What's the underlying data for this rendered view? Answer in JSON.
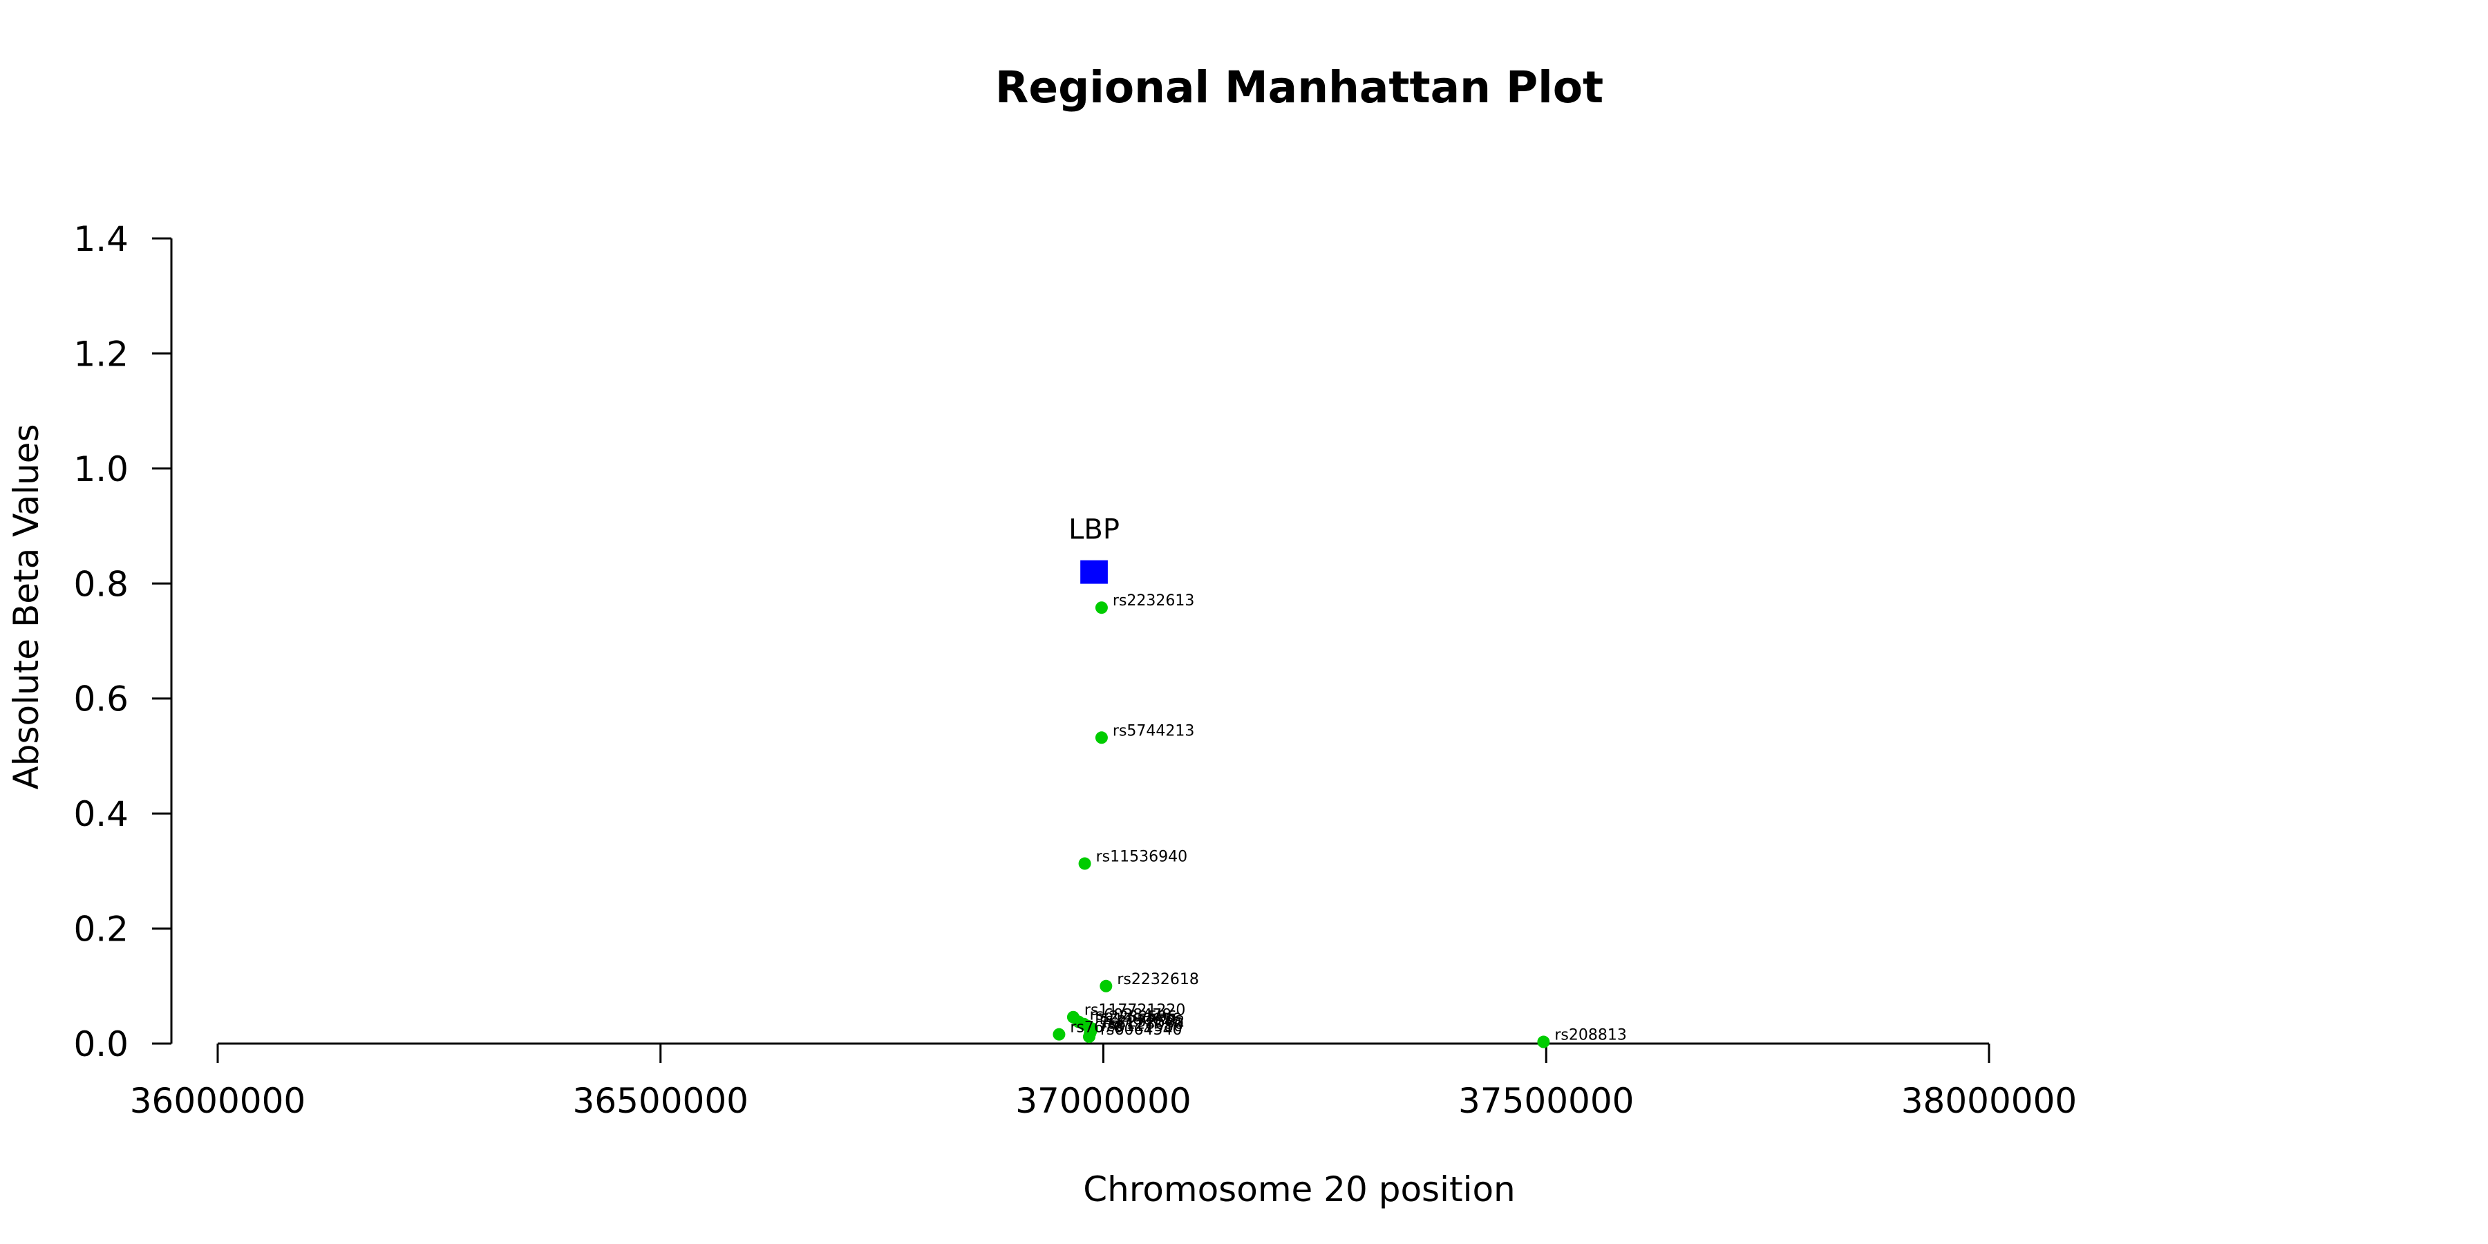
{
  "chart_data": {
    "type": "scatter",
    "title": "Regional Manhattan Plot",
    "xlabel": "Chromosome 20 position",
    "ylabel": "Absolute Beta Values",
    "xlim": [
      36000000,
      38000000
    ],
    "ylim": [
      0,
      1.4
    ],
    "x_ticks": [
      36000000,
      36500000,
      37000000,
      37500000,
      38000000
    ],
    "x_tick_labels": [
      "36000000",
      "36500000",
      "37000000",
      "37500000",
      "38000000"
    ],
    "y_ticks": [
      0,
      0.2,
      0.4,
      0.6,
      0.8,
      1.0,
      1.2,
      1.4
    ],
    "y_tick_labels": [
      "0.0",
      "0.2",
      "0.4",
      "0.6",
      "0.8",
      "1.0",
      "1.2",
      "1.4"
    ],
    "grid": false,
    "point_color": "#00CC00",
    "gene_color": "#0000FF",
    "points": [
      {
        "label": "rs2232613",
        "x": 36998000,
        "y": 0.758
      },
      {
        "label": "rs5744213",
        "x": 36998000,
        "y": 0.532
      },
      {
        "label": "rs11536940",
        "x": 36979000,
        "y": 0.313
      },
      {
        "label": "rs2232618",
        "x": 37003000,
        "y": 0.1
      },
      {
        "label": "rs117721220",
        "x": 36966000,
        "y": 0.046
      },
      {
        "label": "rs6028470",
        "x": 36972000,
        "y": 0.038
      },
      {
        "label": "rs2232596",
        "x": 36978000,
        "y": 0.034
      },
      {
        "label": "rs1780616",
        "x": 36983000,
        "y": 0.03
      },
      {
        "label": "rs2232582",
        "x": 36987000,
        "y": 0.026
      },
      {
        "label": "rs6128030",
        "x": 36986000,
        "y": 0.022
      },
      {
        "label": "rs8117580",
        "x": 36985000,
        "y": 0.018
      },
      {
        "label": "rs7676",
        "x": 36950000,
        "y": 0.016
      },
      {
        "label": "rs6064540",
        "x": 36984000,
        "y": 0.012
      },
      {
        "label": "rs208813",
        "x": 37497000,
        "y": 0.003
      }
    ],
    "genes": [
      {
        "name": "LBP",
        "start": 36974000,
        "end": 37005000,
        "y": 0.82
      }
    ]
  }
}
